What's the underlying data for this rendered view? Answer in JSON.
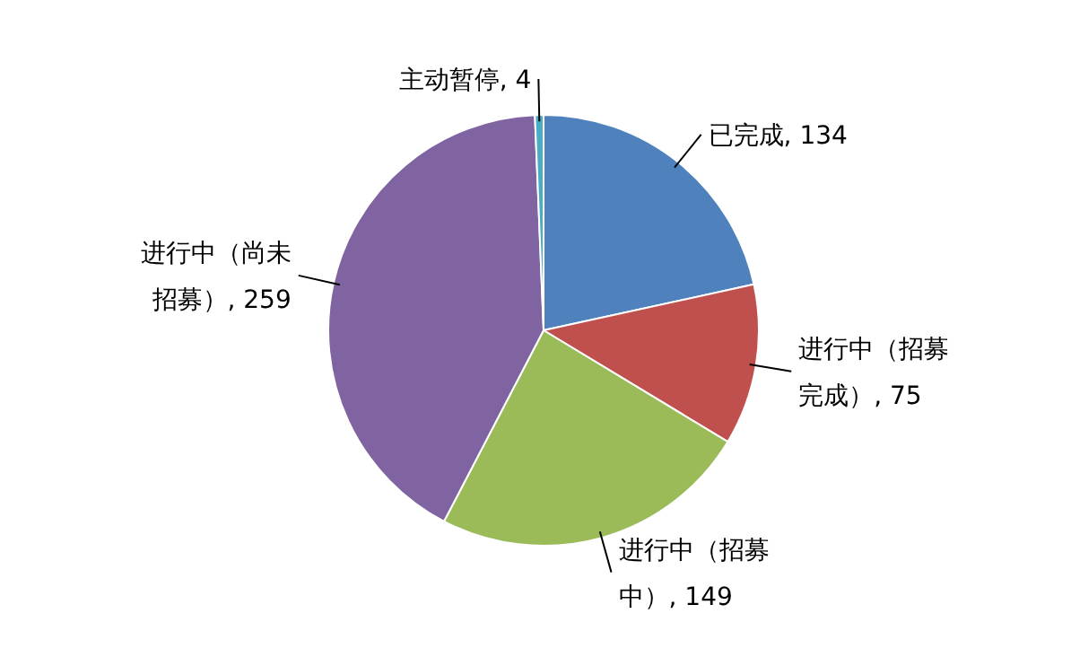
{
  "chart_data": {
    "type": "pie",
    "categories": [
      "已完成",
      "进行中（招募完成）",
      "进行中（招募中）",
      "进行中（尚未招募）",
      "主动暂停"
    ],
    "values": [
      134,
      75,
      149,
      259,
      4
    ],
    "value_labels": [
      ", 134",
      ", 75",
      ", 149",
      ", 259",
      ", 4"
    ],
    "colors": [
      "#4f81bd",
      "#c0504d",
      "#9bbb59",
      "#8064a2",
      "#4bacc6"
    ]
  }
}
